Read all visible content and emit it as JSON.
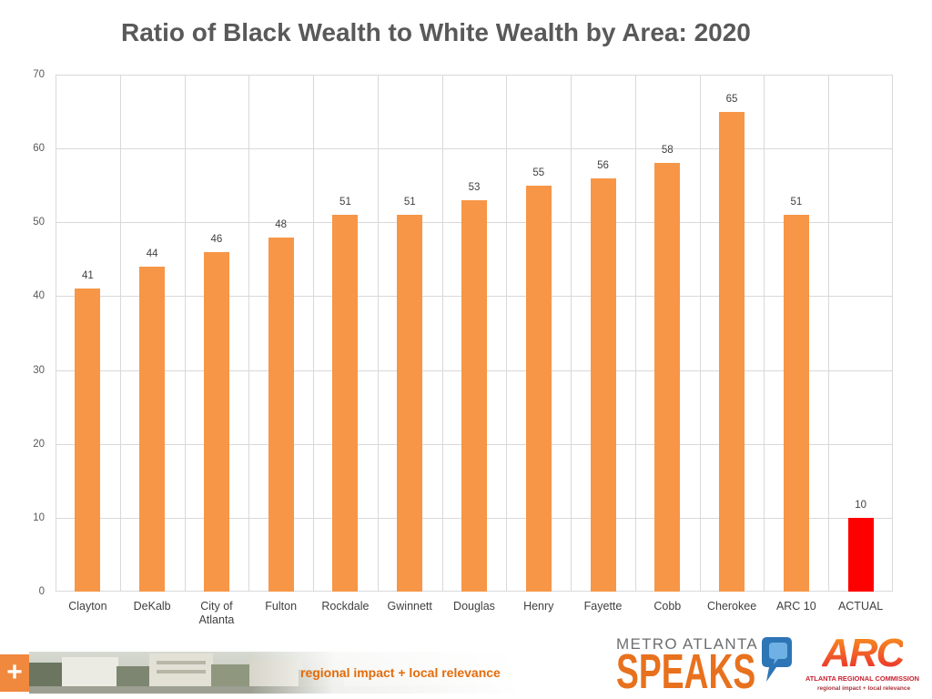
{
  "chart_data": {
    "type": "bar",
    "title": "Ratio of Black Wealth to White Wealth by Area: 2020",
    "categories": [
      "Clayton",
      "DeKalb",
      "City of Atlanta",
      "Fulton",
      "Rockdale",
      "Gwinnett",
      "Douglas",
      "Henry",
      "Fayette",
      "Cobb",
      "Cherokee",
      "ARC 10",
      "ACTUAL"
    ],
    "values": [
      41,
      44,
      46,
      48,
      51,
      51,
      53,
      55,
      56,
      58,
      65,
      51,
      10
    ],
    "bar_colors": [
      "#F79646",
      "#F79646",
      "#F79646",
      "#F79646",
      "#F79646",
      "#F79646",
      "#F79646",
      "#F79646",
      "#F79646",
      "#F79646",
      "#F79646",
      "#F79646",
      "#FF0000"
    ],
    "ylim": [
      0,
      70
    ],
    "yticks": [
      0,
      10,
      20,
      30,
      40,
      50,
      60,
      70
    ],
    "data_labels": true,
    "grid": true,
    "legend": false
  },
  "colors": {
    "title": "#595959",
    "grid": "#D9D9D9",
    "bar": "#F79646",
    "highlight_bar": "#FF0000",
    "brand_orange": "#E8711E",
    "arc_red": "#C8202F"
  },
  "footer": {
    "plus_mark": "+",
    "banner_tagline": "regional impact + local relevance",
    "metro_logo": {
      "line1": "METRO ATLANTA",
      "line2": "SPEAKS",
      "icon": "speech-bubble-icon"
    },
    "arc_logo": {
      "mark": "ARC",
      "name": "ATLANTA REGIONAL COMMISSION",
      "tagline": "regional impact + local relevance"
    }
  }
}
